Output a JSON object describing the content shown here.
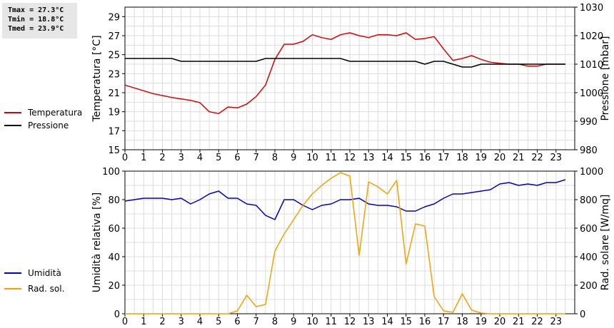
{
  "stats": {
    "tmax": "Tmax = 27.3°C",
    "tmin": "Tmin = 18.8°C",
    "tmed": "Tmed = 23.9°C"
  },
  "chart_data": [
    {
      "type": "line",
      "ylabel_left": "Temperatura [°C]",
      "ylabel_right": "Pressione [mbar]",
      "xlim": [
        0,
        24
      ],
      "xticks": [
        0,
        1,
        2,
        3,
        4,
        5,
        6,
        7,
        8,
        9,
        10,
        11,
        12,
        13,
        14,
        15,
        16,
        17,
        18,
        19,
        20,
        21,
        22,
        23
      ],
      "ylim_left": [
        15,
        30
      ],
      "yticks_left": [
        15,
        17,
        19,
        21,
        23,
        25,
        27,
        29
      ],
      "ylim_right": [
        980,
        1030
      ],
      "yticks_right": [
        980,
        990,
        1000,
        1010,
        1020,
        1030
      ],
      "grid": true,
      "legend_position": "left",
      "series": [
        {
          "name": "Temperatura",
          "color": "#dd0000",
          "axis": "left",
          "x": [
            0,
            0.5,
            1,
            1.5,
            2,
            2.5,
            3,
            3.5,
            4,
            4.5,
            5,
            5.5,
            6,
            6.5,
            7,
            7.5,
            8,
            8.5,
            9,
            9.5,
            10,
            10.5,
            11,
            11.5,
            12,
            12.5,
            13,
            13.5,
            14,
            14.5,
            15,
            15.5,
            16,
            16.5,
            17,
            17.5,
            18,
            18.5,
            19,
            19.5,
            20,
            20.5,
            21,
            21.5,
            22,
            22.5,
            23,
            23.5
          ],
          "y": [
            21.8,
            21.5,
            21.2,
            20.9,
            20.7,
            20.5,
            20.35,
            20.2,
            19.95,
            19.0,
            18.8,
            19.5,
            19.4,
            19.8,
            20.6,
            21.8,
            24.5,
            26.1,
            26.1,
            26.4,
            27.1,
            26.8,
            26.6,
            27.1,
            27.3,
            27.0,
            26.8,
            27.1,
            27.1,
            27.0,
            27.3,
            26.6,
            26.7,
            26.9,
            25.6,
            24.4,
            24.6,
            24.9,
            24.5,
            24.2,
            24.1,
            24.0,
            24.0,
            23.8,
            23.8,
            24.0,
            24.0,
            24.0
          ]
        },
        {
          "name": "Pressione",
          "color": "#000000",
          "axis": "right",
          "x": [
            0,
            0.5,
            1,
            1.5,
            2,
            2.5,
            3,
            3.5,
            4,
            4.5,
            5,
            5.5,
            6,
            6.5,
            7,
            7.5,
            8,
            8.5,
            9,
            9.5,
            10,
            10.5,
            11,
            11.5,
            12,
            12.5,
            13,
            13.5,
            14,
            14.5,
            15,
            15.5,
            16,
            16.5,
            17,
            17.5,
            18,
            18.5,
            19,
            19.5,
            20,
            20.5,
            21,
            21.5,
            22,
            22.5,
            23,
            23.5
          ],
          "y": [
            1012,
            1012,
            1012,
            1012,
            1012,
            1012,
            1011,
            1011,
            1011,
            1011,
            1011,
            1011,
            1011,
            1011,
            1011,
            1012,
            1012,
            1012,
            1012,
            1012,
            1012,
            1012,
            1012,
            1012,
            1011,
            1011,
            1011,
            1011,
            1011,
            1011,
            1011,
            1011,
            1010,
            1011,
            1011,
            1010,
            1009,
            1009,
            1010,
            1010,
            1010,
            1010,
            1010,
            1010,
            1010,
            1010,
            1010,
            1010
          ]
        }
      ]
    },
    {
      "type": "line",
      "ylabel_left": "Umidità relativa [%]",
      "ylabel_right": "Rad. solare [W/mq]",
      "xlim": [
        0,
        24
      ],
      "xticks": [
        0,
        1,
        2,
        3,
        4,
        5,
        6,
        7,
        8,
        9,
        10,
        11,
        12,
        13,
        14,
        15,
        16,
        17,
        18,
        19,
        20,
        21,
        22,
        23
      ],
      "ylim_left": [
        0,
        100
      ],
      "yticks_left": [
        0,
        20,
        40,
        60,
        80,
        100
      ],
      "ylim_right": [
        0,
        1000
      ],
      "yticks_right": [
        0,
        200,
        400,
        600,
        800,
        1000
      ],
      "grid": true,
      "legend_position": "left",
      "series": [
        {
          "name": "Umidità",
          "color": "#0000cc",
          "axis": "left",
          "x": [
            0,
            0.5,
            1,
            1.5,
            2,
            2.5,
            3,
            3.5,
            4,
            4.5,
            5,
            5.5,
            6,
            6.5,
            7,
            7.5,
            8,
            8.5,
            9,
            9.5,
            10,
            10.5,
            11,
            11.5,
            12,
            12.5,
            13,
            13.5,
            14,
            14.5,
            15,
            15.5,
            16,
            16.5,
            17,
            17.5,
            18,
            18.5,
            19,
            19.5,
            20,
            20.5,
            21,
            21.5,
            22,
            22.5,
            23,
            23.5
          ],
          "y": [
            79,
            80,
            81,
            81,
            81,
            80,
            81,
            77,
            80,
            84,
            86,
            81,
            81,
            77,
            76,
            69,
            66,
            80,
            80,
            76,
            73,
            76,
            77,
            80,
            80,
            81,
            77,
            76,
            76,
            75,
            72,
            72,
            75,
            77,
            81,
            84,
            84,
            85,
            86,
            87,
            91,
            92,
            90,
            91,
            90,
            92,
            92,
            94
          ]
        },
        {
          "name": "Rad. sol.",
          "color": "#f5a000",
          "axis": "right",
          "x": [
            0,
            0.5,
            1,
            1.5,
            2,
            2.5,
            3,
            3.5,
            4,
            4.5,
            5,
            5.5,
            6,
            6.5,
            7,
            7.5,
            8,
            8.5,
            9,
            9.5,
            10,
            10.5,
            11,
            11.5,
            12,
            12.5,
            13,
            13.5,
            14,
            14.5,
            15,
            15.5,
            16,
            16.5,
            17,
            17.5,
            18,
            18.5,
            19,
            19.5,
            20,
            20.5,
            21,
            21.5,
            22,
            22.5,
            23,
            23.5
          ],
          "y": [
            0,
            0,
            0,
            0,
            0,
            0,
            0,
            0,
            0,
            0,
            0,
            0,
            20,
            130,
            50,
            65,
            440,
            560,
            660,
            760,
            840,
            900,
            950,
            990,
            965,
            410,
            925,
            890,
            840,
            935,
            350,
            630,
            615,
            120,
            20,
            10,
            140,
            25,
            5,
            0,
            0,
            0,
            0,
            0,
            0,
            0,
            0,
            0
          ]
        }
      ]
    }
  ]
}
